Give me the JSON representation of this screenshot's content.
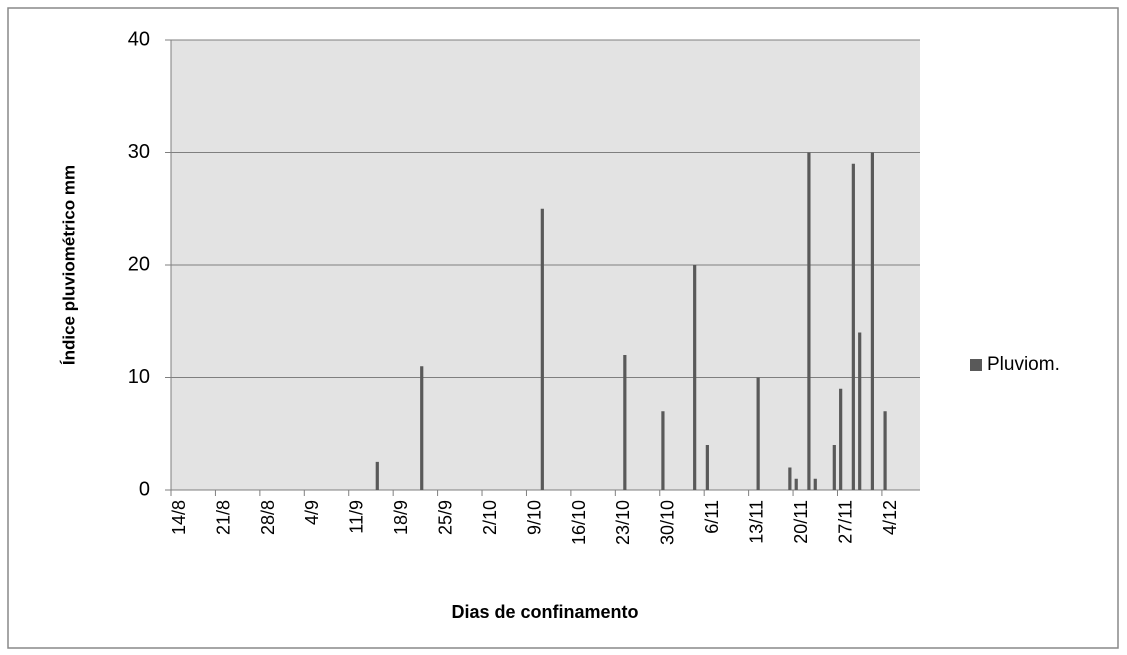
{
  "chart_data": {
    "type": "bar",
    "x_label": "Dias de confinamento",
    "y_label": "Índice pluviométrico mm",
    "categories": [
      "14/8",
      null,
      null,
      null,
      null,
      null,
      null,
      "21/8",
      null,
      null,
      null,
      null,
      null,
      null,
      "28/8",
      null,
      null,
      null,
      null,
      null,
      null,
      "4/9",
      null,
      null,
      null,
      null,
      null,
      null,
      "11/9",
      null,
      null,
      null,
      null,
      null,
      null,
      "18/9",
      null,
      null,
      null,
      null,
      null,
      null,
      "25/9",
      null,
      null,
      null,
      null,
      null,
      null,
      "2/10",
      null,
      null,
      null,
      null,
      null,
      null,
      "9/10",
      null,
      null,
      null,
      null,
      null,
      null,
      "16/10",
      null,
      null,
      null,
      null,
      null,
      null,
      "23/10",
      null,
      null,
      null,
      null,
      null,
      null,
      "30/10",
      null,
      null,
      null,
      null,
      null,
      null,
      "6/11",
      null,
      null,
      null,
      null,
      null,
      null,
      "13/11",
      null,
      null,
      null,
      null,
      null,
      null,
      "20/11",
      null,
      null,
      null,
      null,
      null,
      null,
      "27/11",
      null,
      null,
      null,
      null,
      null,
      null,
      "4/12",
      null,
      null,
      null,
      null,
      null
    ],
    "series": [
      {
        "name": "Pluviom.",
        "color": "#595959",
        "values": [
          null,
          null,
          null,
          null,
          null,
          null,
          null,
          null,
          null,
          null,
          null,
          null,
          null,
          null,
          null,
          null,
          null,
          null,
          null,
          null,
          null,
          null,
          null,
          null,
          null,
          null,
          null,
          null,
          null,
          null,
          null,
          null,
          2.5,
          null,
          null,
          null,
          null,
          null,
          null,
          11,
          null,
          null,
          null,
          null,
          null,
          null,
          null,
          null,
          null,
          null,
          null,
          null,
          null,
          null,
          null,
          null,
          null,
          null,
          25,
          null,
          null,
          null,
          null,
          null,
          null,
          null,
          null,
          null,
          null,
          null,
          null,
          12,
          null,
          null,
          null,
          null,
          null,
          7,
          null,
          null,
          null,
          null,
          20,
          null,
          4,
          null,
          null,
          null,
          null,
          null,
          null,
          null,
          10,
          null,
          null,
          null,
          null,
          2,
          1,
          null,
          30,
          1,
          null,
          null,
          4,
          9,
          null,
          29,
          14,
          null,
          30,
          null,
          7,
          null,
          null,
          null,
          null,
          null
        ]
      }
    ],
    "ylim": [
      0,
      40
    ],
    "yticks": [
      0,
      10,
      20,
      30,
      40
    ],
    "grid": true,
    "legend": "right"
  }
}
